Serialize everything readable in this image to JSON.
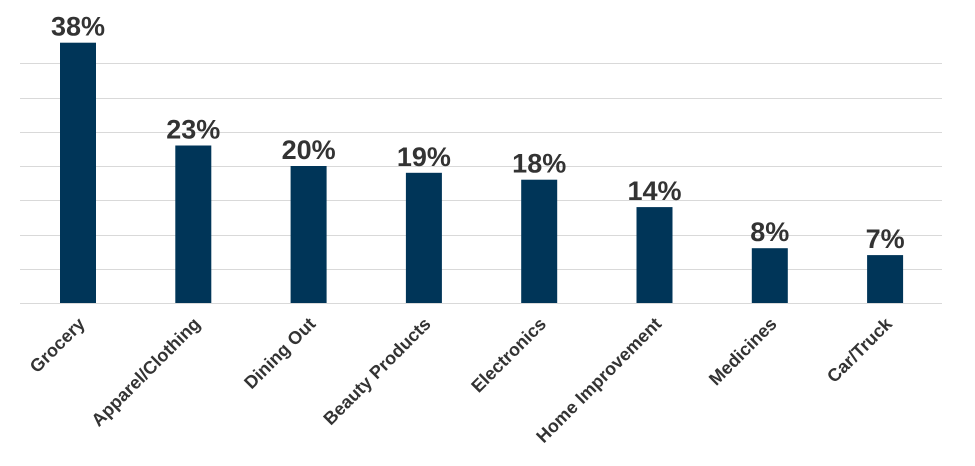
{
  "chart_data": {
    "type": "bar",
    "title": "",
    "xlabel": "",
    "ylabel": "",
    "categories": [
      "Grocery",
      "Apparel/Clothing",
      "Dining Out",
      "Beauty Products",
      "Electronics",
      "Home Improvement",
      "Medicines",
      "Car/Truck"
    ],
    "values": [
      38,
      23,
      20,
      19,
      18,
      14,
      8,
      7
    ],
    "value_labels": [
      "38%",
      "23%",
      "20%",
      "19%",
      "18%",
      "14%",
      "8%",
      "7%"
    ],
    "ylim": [
      0,
      40
    ],
    "y_gridline_step": 5,
    "grid": true,
    "y_axis_labels_shown": false,
    "legend": "none",
    "colors": {
      "bar": "#003558",
      "text": "#333333",
      "grid": "#d9d9d9"
    }
  }
}
